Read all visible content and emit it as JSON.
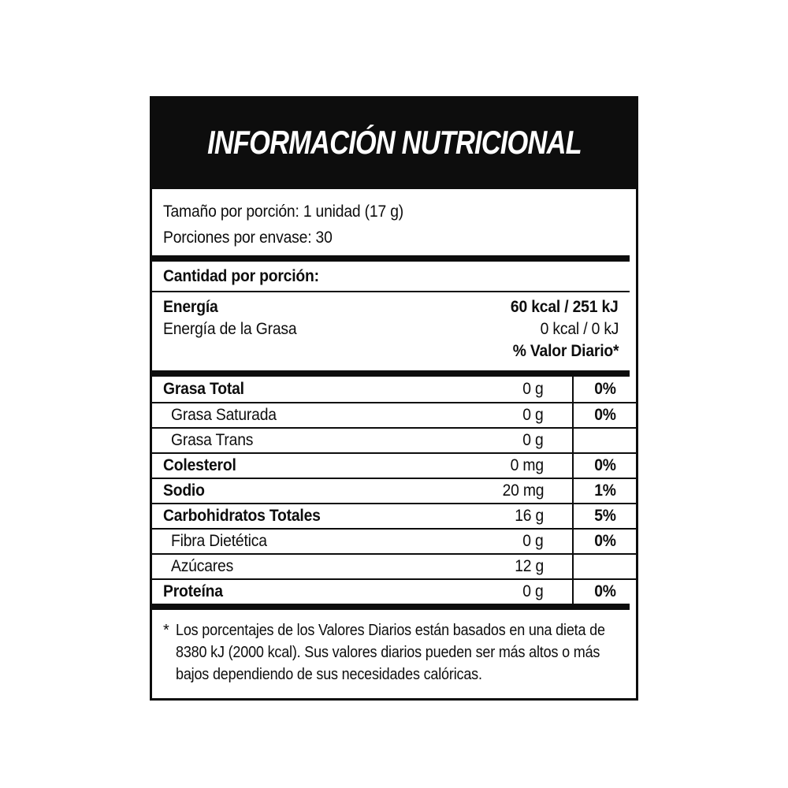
{
  "label": {
    "title": "INFORMACIÓN NUTRICIONAL",
    "serving": {
      "size_line": "Tamaño por porción: 1 unidad (17 g)",
      "per_container_line": "Porciones por envase: 30"
    },
    "amount_header": "Cantidad por porción:",
    "energy": {
      "rows": [
        {
          "label": "Energía",
          "value": "60 kcal / 251 kJ"
        },
        {
          "label": "Energía de la Grasa",
          "value": "0 kcal / 0 kJ"
        }
      ],
      "dv_header": "% Valor Diario*"
    },
    "nutrients": [
      {
        "label": "Grasa Total",
        "value": "0 g",
        "dv": "0%"
      },
      {
        "label": "Grasa Saturada",
        "value": "0 g",
        "dv": "0%"
      },
      {
        "label": "Grasa Trans",
        "value": "0 g",
        "dv": ""
      },
      {
        "label": "Colesterol",
        "value": "0 mg",
        "dv": "0%"
      },
      {
        "label": "Sodio",
        "value": "20 mg",
        "dv": "1%"
      },
      {
        "label": "Carbohidratos Totales",
        "value": "16 g",
        "dv": "5%"
      },
      {
        "label": "Fibra Dietética",
        "value": "0 g",
        "dv": "0%"
      },
      {
        "label": "Azúcares",
        "value": "12 g",
        "dv": ""
      },
      {
        "label": "Proteína",
        "value": "0 g",
        "dv": "0%"
      }
    ],
    "footnote": {
      "marker": "*",
      "lines": [
        "Los porcentajes  de los Valores Diarios están basados en una dieta de",
        "8380 kJ (2000 kcal). Sus valores diarios pueden ser más altos o más",
        "bajos dependiendo de sus necesidades calóricas."
      ]
    },
    "colors": {
      "ink": "#0d0d0d",
      "paper": "#ffffff"
    }
  }
}
